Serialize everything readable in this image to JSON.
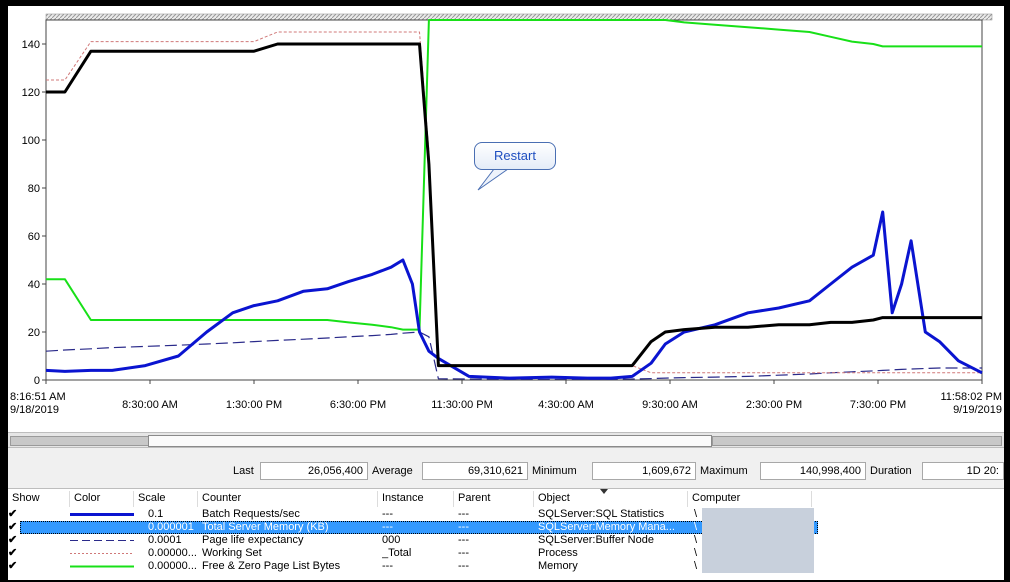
{
  "chart_data": {
    "type": "line",
    "ylim": [
      0,
      150
    ],
    "yticks": [
      "0",
      "20",
      "40",
      "60",
      "80",
      "100",
      "120",
      "140"
    ],
    "xticks": [
      {
        "label": "8:16:51 AM",
        "label2": "9/18/2019"
      },
      {
        "label": "8:30:00 AM",
        "label2": ""
      },
      {
        "label": "1:30:00 PM",
        "label2": ""
      },
      {
        "label": "6:30:00 PM",
        "label2": ""
      },
      {
        "label": "11:30:00 PM",
        "label2": ""
      },
      {
        "label": "4:30:00 AM",
        "label2": ""
      },
      {
        "label": "9:30:00 AM",
        "label2": ""
      },
      {
        "label": "2:30:00 PM",
        "label2": ""
      },
      {
        "label": "7:30:00 PM",
        "label2": ""
      },
      {
        "label": "11:58:02 PM",
        "label2": "9/19/2019"
      }
    ],
    "annotation": "Restart",
    "x_hours": [
      0,
      0.8,
      1.9,
      2.8,
      4.2,
      5.6,
      6.8,
      7.9,
      8.8,
      9.8,
      10.9,
      11.9,
      12.8,
      13.8,
      14.6,
      15.1,
      15.5,
      15.8,
      16.2,
      16.6,
      17.9,
      19.6,
      21.4,
      22.9,
      23.9,
      24.8,
      25.6,
      26.2,
      27.0,
      28.3,
      29.7,
      31.0,
      32.3,
      33.2,
      34.1,
      35.0,
      35.4,
      35.8,
      36.2,
      36.6,
      37.2,
      37.8,
      38.6,
      39.6
    ],
    "series": [
      {
        "name": "Batch Requests/sec",
        "color": "#0a14d0",
        "dash": "",
        "width": 3,
        "values": [
          4,
          3.6,
          4,
          4,
          6,
          10,
          20,
          28,
          31,
          33,
          37,
          38,
          41,
          44,
          47,
          50,
          40,
          20,
          12,
          9,
          1.5,
          0.8,
          1.2,
          0.8,
          0.8,
          1.5,
          7,
          15,
          20,
          23,
          28,
          30,
          33,
          40,
          47,
          52,
          70,
          28,
          40,
          58,
          20,
          16,
          8,
          3
        ]
      },
      {
        "name": "Total Server Memory (KB)",
        "color": "#000000",
        "dash": "",
        "width": 3,
        "values": [
          120,
          120,
          137,
          137,
          137,
          137,
          137,
          137,
          137,
          140,
          140,
          140,
          140,
          140,
          140,
          140,
          140,
          140,
          90,
          6,
          6,
          6,
          6,
          6,
          6,
          6,
          16,
          20,
          21,
          22,
          22,
          23,
          23,
          24,
          24,
          25,
          26,
          26,
          26,
          26,
          26,
          26,
          26,
          26
        ]
      },
      {
        "name": "Page life expectancy",
        "color": "#2a2a8a",
        "dash": "12,5",
        "width": 1.2,
        "values": [
          12,
          12.5,
          13,
          13.5,
          14,
          14.5,
          15,
          15.5,
          16,
          16.5,
          17,
          17.5,
          18,
          18.5,
          19,
          19.5,
          19.8,
          20,
          18,
          0.5,
          0.4,
          0.3,
          0.3,
          0.3,
          0.3,
          0.4,
          0.6,
          0.8,
          1,
          1.2,
          1.5,
          2,
          2.5,
          3,
          3.4,
          3.8,
          4,
          4.2,
          4.4,
          4.6,
          4.8,
          5,
          5,
          5
        ]
      },
      {
        "name": "Working Set",
        "color": "#d07878",
        "dash": "3,2",
        "width": 1,
        "values": [
          125,
          125,
          141,
          141,
          141,
          141,
          141,
          141,
          141,
          145,
          145,
          145,
          145,
          145,
          145,
          145,
          145,
          145,
          95,
          6,
          6,
          6,
          6,
          6,
          6,
          6,
          3,
          3,
          3,
          3,
          3,
          3,
          3,
          3,
          3,
          3,
          3,
          3,
          3,
          3,
          3,
          3,
          3,
          3
        ]
      },
      {
        "name": "Free & Zero Page List Bytes",
        "color": "#18e018",
        "dash": "",
        "width": 2,
        "values": [
          42,
          42,
          25,
          25,
          25,
          25,
          25,
          25,
          25,
          25,
          25,
          25,
          24,
          23,
          22,
          21,
          21,
          21,
          150,
          150,
          150,
          150,
          150,
          150,
          150,
          150,
          150,
          150,
          149,
          148,
          147,
          146,
          145,
          143,
          141,
          140,
          139,
          139,
          139,
          139,
          139,
          139,
          139,
          139
        ]
      }
    ]
  },
  "stats": {
    "last_label": "Last",
    "last_value": "26,056,400",
    "average_label": "Average",
    "average_value": "69,310,621",
    "minimum_label": "Minimum",
    "minimum_value": "1,609,672",
    "maximum_label": "Maximum",
    "maximum_value": "140,998,400",
    "duration_label": "Duration",
    "duration_value": "1D 20:"
  },
  "table": {
    "headers": [
      "Show",
      "Color",
      "Scale",
      "Counter",
      "Instance",
      "Parent",
      "Object",
      "Computer"
    ],
    "rows": [
      {
        "scale": "0.1",
        "counter": "Batch Requests/sec",
        "instance": "---",
        "parent": "---",
        "object": "SQLServer:SQL Statistics",
        "computer": "\\"
      },
      {
        "scale": "0.000001",
        "counter": "Total Server Memory (KB)",
        "instance": "---",
        "parent": "---",
        "object": "SQLServer:Memory Mana...",
        "computer": "\\"
      },
      {
        "scale": "0.0001",
        "counter": "Page life expectancy",
        "instance": "000",
        "parent": "---",
        "object": "SQLServer:Buffer Node",
        "computer": "\\"
      },
      {
        "scale": "0.00000...",
        "counter": "Working Set",
        "instance": "_Total",
        "parent": "---",
        "object": "Process",
        "computer": "\\"
      },
      {
        "scale": "0.00000...",
        "counter": "Free & Zero Page List Bytes",
        "instance": "---",
        "parent": "---",
        "object": "Memory",
        "computer": "\\"
      }
    ],
    "checkmark": "✔"
  }
}
